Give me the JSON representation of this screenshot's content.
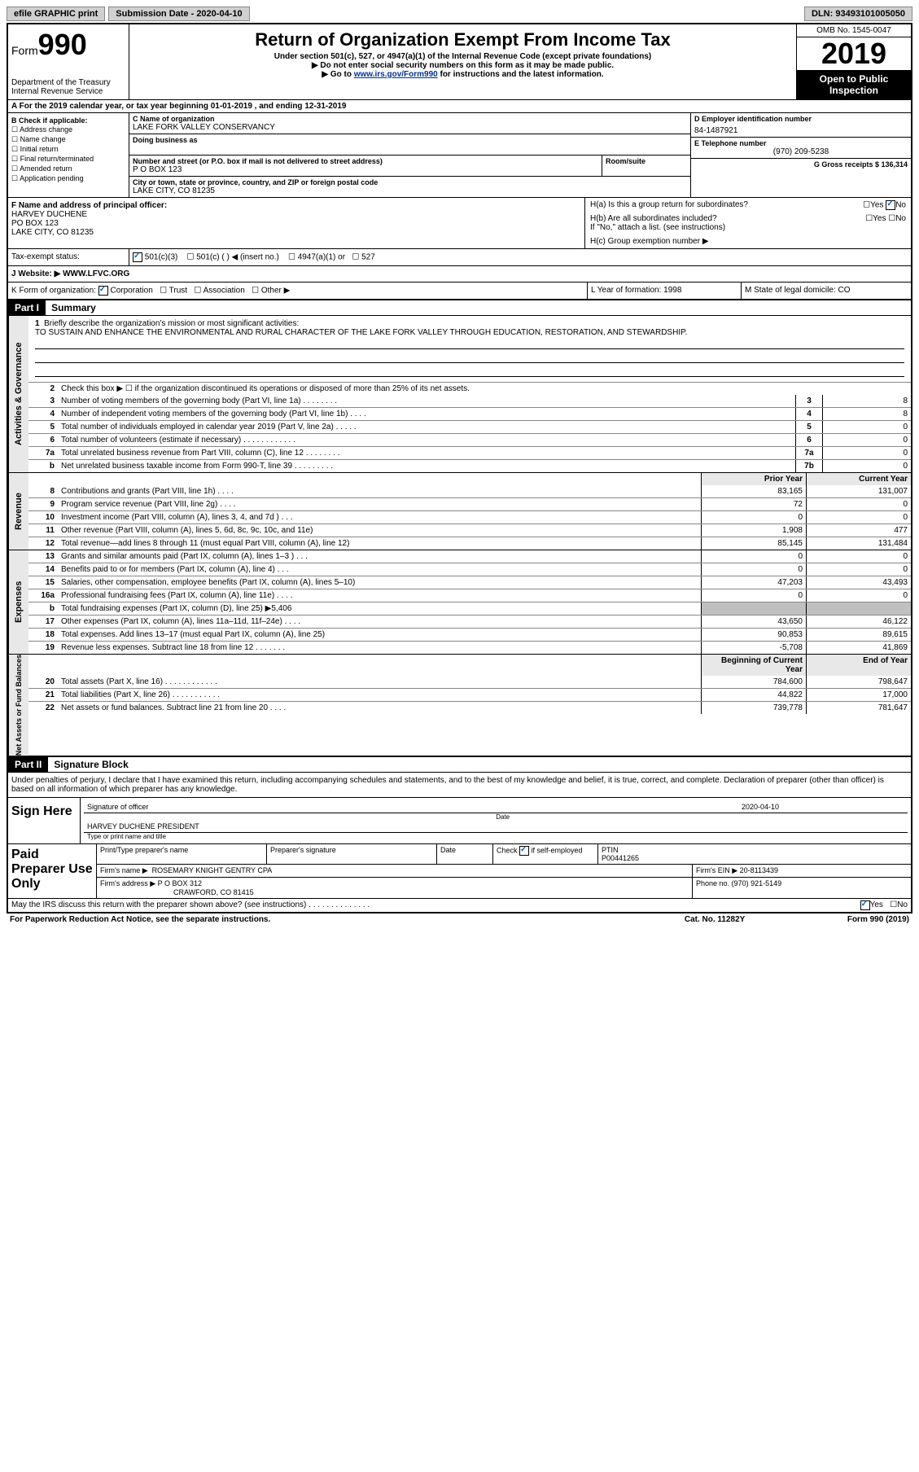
{
  "topbar": {
    "efile": "efile GRAPHIC print",
    "submission": "Submission Date - 2020-04-10",
    "dln": "DLN: 93493101005050"
  },
  "header": {
    "form": "Form",
    "form_num": "990",
    "dept": "Department of the Treasury",
    "irs": "Internal Revenue Service",
    "title": "Return of Organization Exempt From Income Tax",
    "sub": "Under section 501(c), 527, or 4947(a)(1) of the Internal Revenue Code (except private foundations)",
    "note1": "▶ Do not enter social security numbers on this form as it may be made public.",
    "note2_pre": "▶ Go to ",
    "note2_link": "www.irs.gov/Form990",
    "note2_post": " for instructions and the latest information.",
    "omb": "OMB No. 1545-0047",
    "year": "2019",
    "open": "Open to Public Inspection"
  },
  "row_a": "A For the 2019 calendar year, or tax year beginning 01-01-2019   , and ending 12-31-2019",
  "col_b": {
    "header": "B Check if applicable:",
    "items": [
      "Address change",
      "Name change",
      "Initial return",
      "Final return/terminated",
      "Amended return",
      "Application pending"
    ]
  },
  "col_c": {
    "name_label": "C Name of organization",
    "name": "LAKE FORK VALLEY CONSERVANCY",
    "dba": "Doing business as",
    "addr_label": "Number and street (or P.O. box if mail is not delivered to street address)",
    "room": "Room/suite",
    "addr": "P O BOX 123",
    "city_label": "City or town, state or province, country, and ZIP or foreign postal code",
    "city": "LAKE CITY, CO  81235"
  },
  "col_d": {
    "label": "D Employer identification number",
    "ein": "84-1487921",
    "e_label": "E Telephone number",
    "phone": "(970) 209-5238",
    "g_label": "G Gross receipts $ 136,314"
  },
  "f": {
    "label": "F  Name and address of principal officer:",
    "name": "HARVEY DUCHENE",
    "addr1": "PO BOX 123",
    "addr2": "LAKE CITY, CO  81235"
  },
  "h": {
    "a": "H(a)  Is this a group return for subordinates?",
    "b": "H(b)  Are all subordinates included?",
    "b_note": "If \"No,\" attach a list. (see instructions)",
    "c": "H(c)  Group exemption number ▶"
  },
  "i": {
    "label": "Tax-exempt status:",
    "opts": [
      "501(c)(3)",
      "501(c) (  ) ◀ (insert no.)",
      "4947(a)(1) or",
      "527"
    ]
  },
  "j": {
    "label": "J   Website: ▶",
    "val": "WWW.LFVC.ORG"
  },
  "k": {
    "label": "K Form of organization:",
    "opts": [
      "Corporation",
      "Trust",
      "Association",
      "Other ▶"
    ],
    "l": "L Year of formation: 1998",
    "m": "M State of legal domicile: CO"
  },
  "part1": {
    "header": "Part I",
    "title": "Summary",
    "l1": "Briefly describe the organization's mission or most significant activities:",
    "mission": "TO SUSTAIN AND ENHANCE THE ENVIRONMENTAL AND RURAL CHARACTER OF THE LAKE FORK VALLEY THROUGH EDUCATION, RESTORATION, AND STEWARDSHIP.",
    "l2": "Check this box ▶ ☐  if the organization discontinued its operations or disposed of more than 25% of its net assets.",
    "lines_gov": [
      {
        "n": "3",
        "d": "Number of voting members of the governing body (Part VI, line 1a)  .    .    .    .    .    .    .    .",
        "b": "3",
        "v": "8"
      },
      {
        "n": "4",
        "d": "Number of independent voting members of the governing body (Part VI, line 1b)   .    .    .    .",
        "b": "4",
        "v": "8"
      },
      {
        "n": "5",
        "d": "Total number of individuals employed in calendar year 2019 (Part V, line 2a)   .    .    .    .    .",
        "b": "5",
        "v": "0"
      },
      {
        "n": "6",
        "d": "Total number of volunteers (estimate if necessary)    .    .    .    .    .    .    .    .    .    .    .    .",
        "b": "6",
        "v": "0"
      },
      {
        "n": "7a",
        "d": "Total unrelated business revenue from Part VIII, column (C), line 12   .    .    .    .    .    .    .    .",
        "b": "7a",
        "v": "0"
      },
      {
        "n": "b",
        "d": "Net unrelated business taxable income from Form 990-T, line 39   .    .    .    .    .    .    .    .    .",
        "b": "7b",
        "v": "0"
      }
    ],
    "col_prior": "Prior Year",
    "col_current": "Current Year",
    "revenue": [
      {
        "n": "8",
        "d": "Contributions and grants (Part VIII, line 1h)    .    .    .    .",
        "p": "83,165",
        "c": "131,007"
      },
      {
        "n": "9",
        "d": "Program service revenue (Part VIII, line 2g)   .    .    .    .",
        "p": "72",
        "c": "0"
      },
      {
        "n": "10",
        "d": "Investment income (Part VIII, column (A), lines 3, 4, and 7d )   .    .    .",
        "p": "0",
        "c": "0"
      },
      {
        "n": "11",
        "d": "Other revenue (Part VIII, column (A), lines 5, 6d, 8c, 9c, 10c, and 11e)",
        "p": "1,908",
        "c": "477"
      },
      {
        "n": "12",
        "d": "Total revenue—add lines 8 through 11 (must equal Part VIII, column (A), line 12)",
        "p": "85,145",
        "c": "131,484"
      }
    ],
    "expenses": [
      {
        "n": "13",
        "d": "Grants and similar amounts paid (Part IX, column (A), lines 1–3 )   .    .    .",
        "p": "0",
        "c": "0"
      },
      {
        "n": "14",
        "d": "Benefits paid to or for members (Part IX, column (A), line 4)   .    .    .",
        "p": "0",
        "c": "0"
      },
      {
        "n": "15",
        "d": "Salaries, other compensation, employee benefits (Part IX, column (A), lines 5–10)",
        "p": "47,203",
        "c": "43,493"
      },
      {
        "n": "16a",
        "d": "Professional fundraising fees (Part IX, column (A), line 11e)   .    .    .    .",
        "p": "0",
        "c": "0"
      },
      {
        "n": "b",
        "d": "Total fundraising expenses (Part IX, column (D), line 25) ▶5,406",
        "p": "",
        "c": "",
        "shaded": true
      },
      {
        "n": "17",
        "d": "Other expenses (Part IX, column (A), lines 11a–11d, 11f–24e)   .    .    .    .",
        "p": "43,650",
        "c": "46,122"
      },
      {
        "n": "18",
        "d": "Total expenses. Add lines 13–17 (must equal Part IX, column (A), line 25)",
        "p": "90,853",
        "c": "89,615"
      },
      {
        "n": "19",
        "d": "Revenue less expenses. Subtract line 18 from line 12 .    .    .    .    .    .    .",
        "p": "-5,708",
        "c": "41,869"
      }
    ],
    "col_begin": "Beginning of Current Year",
    "col_end": "End of Year",
    "netassets": [
      {
        "n": "20",
        "d": "Total assets (Part X, line 16)  .    .    .    .    .    .    .    .    .    .    .    .",
        "p": "784,600",
        "c": "798,647"
      },
      {
        "n": "21",
        "d": "Total liabilities (Part X, line 26)   .    .    .    .    .    .    .    .    .    .    .",
        "p": "44,822",
        "c": "17,000"
      },
      {
        "n": "22",
        "d": "Net assets or fund balances. Subtract line 21 from line 20   .    .    .    .",
        "p": "739,778",
        "c": "781,647"
      }
    ],
    "side_gov": "Activities & Governance",
    "side_rev": "Revenue",
    "side_exp": "Expenses",
    "side_net": "Net Assets or Fund Balances"
  },
  "part2": {
    "header": "Part II",
    "title": "Signature Block",
    "decl": "Under penalties of perjury, I declare that I have examined this return, including accompanying schedules and statements, and to the best of my knowledge and belief, it is true, correct, and complete. Declaration of preparer (other than officer) is based on all information of which preparer has any knowledge.",
    "sign_here": "Sign Here",
    "sig_officer": "Signature of officer",
    "date": "Date",
    "date_val": "2020-04-10",
    "officer_name": "HARVEY DUCHENE  PRESIDENT",
    "type_name": "Type or print name and title",
    "paid": "Paid Preparer Use Only",
    "prep_name_label": "Print/Type preparer's name",
    "prep_sig_label": "Preparer's signature",
    "prep_date": "Date",
    "check_self": "Check ☑ if self-employed",
    "ptin_label": "PTIN",
    "ptin": "P00441265",
    "firm_name_label": "Firm's name     ▶",
    "firm_name": "ROSEMARY KNIGHT GENTRY CPA",
    "firm_ein_label": "Firm's EIN ▶",
    "firm_ein": "20-8113439",
    "firm_addr_label": "Firm's address ▶",
    "firm_addr1": "P O BOX 312",
    "firm_addr2": "CRAWFORD, CO  81415",
    "phone_label": "Phone no.",
    "phone": "(970) 921-5149",
    "irs_discuss": "May the IRS discuss this return with the preparer shown above? (see instructions)   .    .    .    .    .    .    .    .    .    .    .    .    .    .",
    "yes": "Yes",
    "no": "No"
  },
  "footer": {
    "left": "For Paperwork Reduction Act Notice, see the separate instructions.",
    "mid": "Cat. No. 11282Y",
    "right": "Form 990 (2019)"
  }
}
